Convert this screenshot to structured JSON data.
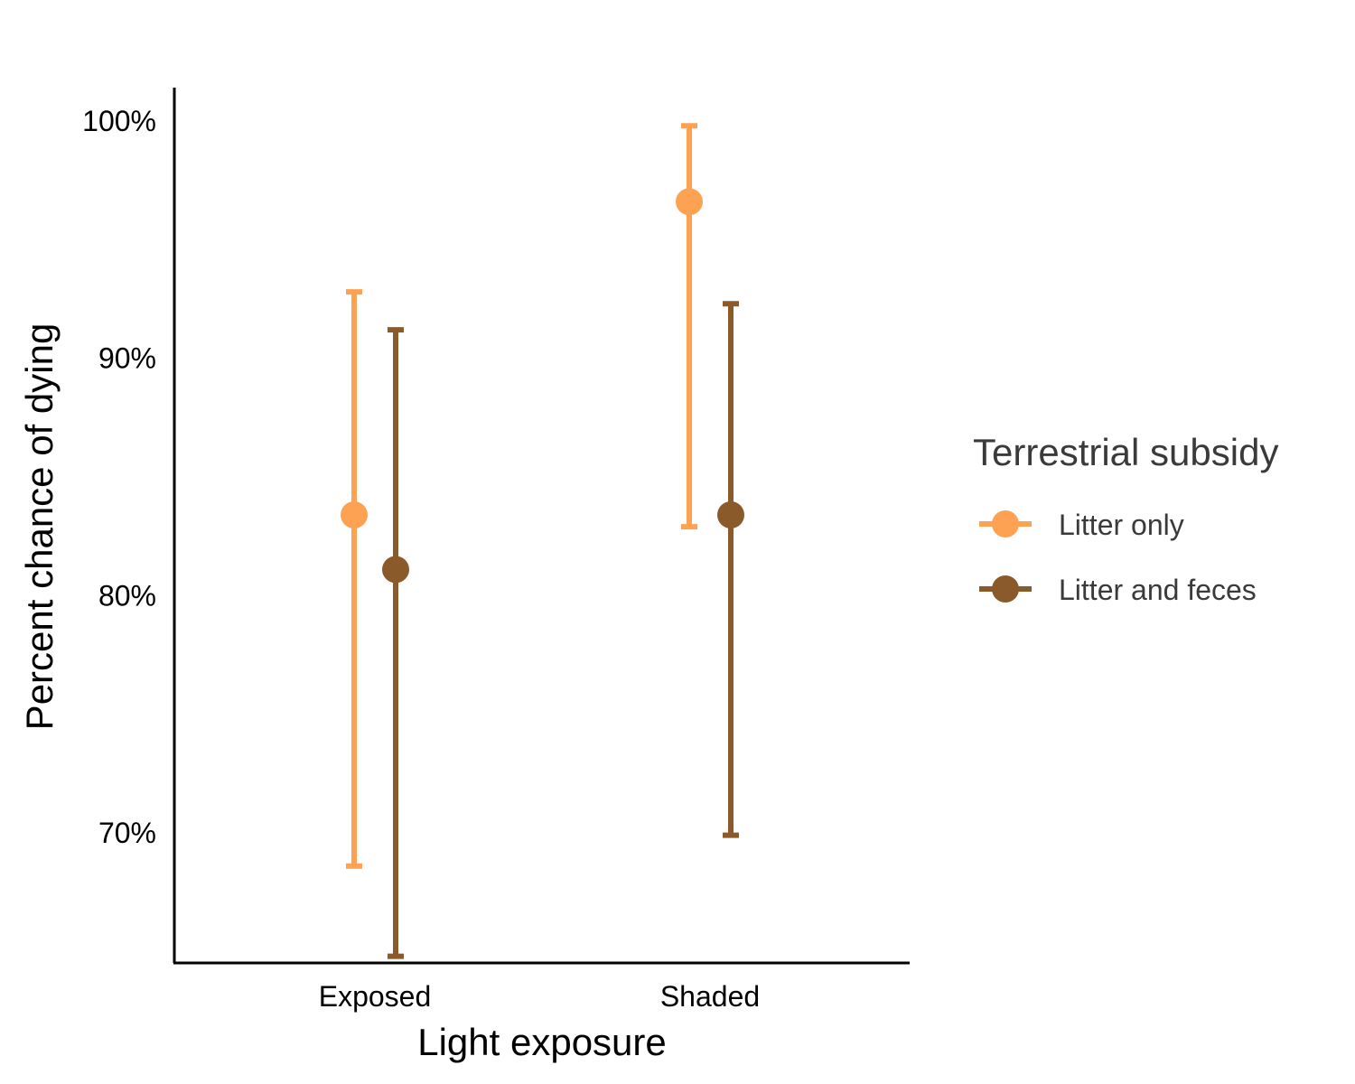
{
  "chart_data": {
    "type": "scatter",
    "subtype": "point-with-errorbars",
    "xlabel": "Light exposure",
    "ylabel": "Percent chance of dying",
    "categories": [
      "Exposed",
      "Shaded"
    ],
    "y_ticks": [
      {
        "value": 0.7,
        "label": "70%"
      },
      {
        "value": 0.8,
        "label": "80%"
      },
      {
        "value": 0.9,
        "label": "90%"
      },
      {
        "value": 1.0,
        "label": "100%"
      }
    ],
    "ylim": [
      0.645,
      1.014
    ],
    "grid": false,
    "legend": {
      "title": "Terrestrial subsidy",
      "placement": "right"
    },
    "series": [
      {
        "name": "Litter only",
        "color": "#FDA252",
        "points": [
          {
            "x": "Exposed",
            "y": 0.834,
            "lower": 0.686,
            "upper": 0.928
          },
          {
            "x": "Shaded",
            "y": 0.966,
            "lower": 0.829,
            "upper": 0.998
          }
        ]
      },
      {
        "name": "Litter and feces",
        "color": "#8B5A2B",
        "points": [
          {
            "x": "Exposed",
            "y": 0.811,
            "lower": 0.648,
            "upper": 0.912
          },
          {
            "x": "Shaded",
            "y": 0.834,
            "lower": 0.699,
            "upper": 0.923
          }
        ]
      }
    ]
  }
}
